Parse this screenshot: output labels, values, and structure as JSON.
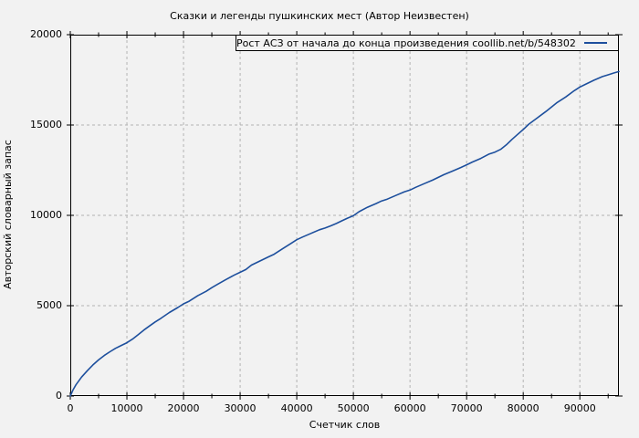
{
  "chart_data": {
    "type": "line",
    "title": "Сказки и легенды пушкинских мест (Автор Неизвестен)",
    "xlabel": "Счетчик слов",
    "ylabel": "Авторский словарный запас",
    "xlim": [
      0,
      96900
    ],
    "ylim": [
      0,
      20000
    ],
    "x_ticks": [
      0,
      10000,
      20000,
      30000,
      40000,
      50000,
      60000,
      70000,
      80000,
      90000
    ],
    "x_minor_ticks": [
      5000,
      15000,
      25000,
      35000,
      45000,
      55000,
      65000,
      75000,
      85000,
      95000
    ],
    "y_ticks": [
      0,
      5000,
      10000,
      15000,
      20000
    ],
    "grid": true,
    "legend_position": "top-right-inside-box",
    "colors": {
      "line": "#1d4f9d",
      "grid": "#b3b3b3",
      "border": "#000000",
      "background": "#f2f2f2",
      "text": "#000000"
    },
    "series": [
      {
        "name": "Рост АСЗ от начала до конца произведения coollib.net/b/548302",
        "color": "#1d4f9d",
        "points": [
          [
            0,
            0
          ],
          [
            500,
            350
          ],
          [
            1000,
            620
          ],
          [
            2000,
            1050
          ],
          [
            3000,
            1400
          ],
          [
            4000,
            1720
          ],
          [
            5000,
            2000
          ],
          [
            6000,
            2240
          ],
          [
            7000,
            2450
          ],
          [
            8000,
            2640
          ],
          [
            9000,
            2800
          ],
          [
            10000,
            2950
          ],
          [
            11000,
            3150
          ],
          [
            12000,
            3400
          ],
          [
            13000,
            3650
          ],
          [
            14000,
            3880
          ],
          [
            15000,
            4100
          ],
          [
            16000,
            4300
          ],
          [
            17500,
            4620
          ],
          [
            19000,
            4900
          ],
          [
            20000,
            5100
          ],
          [
            21000,
            5250
          ],
          [
            22500,
            5550
          ],
          [
            24000,
            5800
          ],
          [
            25000,
            6000
          ],
          [
            26000,
            6180
          ],
          [
            27500,
            6450
          ],
          [
            29000,
            6700
          ],
          [
            30000,
            6850
          ],
          [
            31000,
            7000
          ],
          [
            32000,
            7250
          ],
          [
            33000,
            7400
          ],
          [
            34000,
            7550
          ],
          [
            35000,
            7700
          ],
          [
            36000,
            7850
          ],
          [
            37500,
            8150
          ],
          [
            39000,
            8450
          ],
          [
            40000,
            8650
          ],
          [
            41000,
            8800
          ],
          [
            42500,
            9000
          ],
          [
            44000,
            9200
          ],
          [
            45000,
            9300
          ],
          [
            46000,
            9420
          ],
          [
            47000,
            9550
          ],
          [
            48000,
            9700
          ],
          [
            49000,
            9850
          ],
          [
            50000,
            9980
          ],
          [
            51000,
            10200
          ],
          [
            52500,
            10450
          ],
          [
            54000,
            10650
          ],
          [
            55000,
            10800
          ],
          [
            56000,
            10900
          ],
          [
            57500,
            11100
          ],
          [
            59000,
            11300
          ],
          [
            60000,
            11400
          ],
          [
            61000,
            11550
          ],
          [
            62500,
            11750
          ],
          [
            64000,
            11950
          ],
          [
            65000,
            12100
          ],
          [
            66000,
            12250
          ],
          [
            67500,
            12450
          ],
          [
            69000,
            12650
          ],
          [
            70000,
            12800
          ],
          [
            71000,
            12950
          ],
          [
            72500,
            13150
          ],
          [
            74000,
            13400
          ],
          [
            75000,
            13500
          ],
          [
            76000,
            13650
          ],
          [
            77000,
            13900
          ],
          [
            78000,
            14200
          ],
          [
            79000,
            14480
          ],
          [
            80000,
            14750
          ],
          [
            81000,
            15050
          ],
          [
            82500,
            15400
          ],
          [
            84000,
            15750
          ],
          [
            85000,
            16000
          ],
          [
            86000,
            16250
          ],
          [
            87500,
            16550
          ],
          [
            89000,
            16900
          ],
          [
            90000,
            17100
          ],
          [
            91000,
            17250
          ],
          [
            92500,
            17480
          ],
          [
            94000,
            17680
          ],
          [
            95000,
            17780
          ],
          [
            96000,
            17880
          ],
          [
            96900,
            17960
          ]
        ]
      }
    ]
  }
}
